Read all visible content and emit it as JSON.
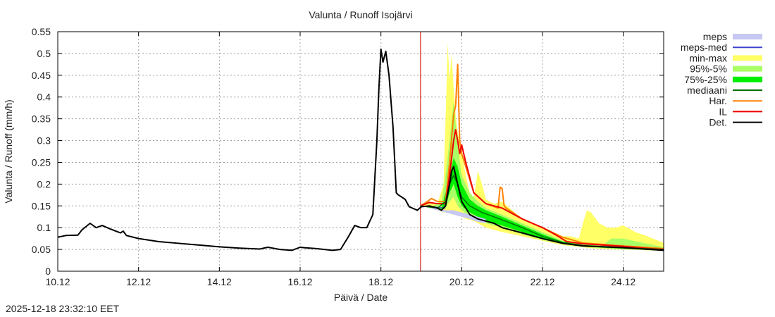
{
  "title": "Valunta / Runoff  Isojärvi",
  "timestamp": "2025-12-18 23:32:10 EET",
  "chart_data": {
    "type": "line",
    "title": "Valunta / Runoff  Isojärvi",
    "xlabel": "Päivä / Date",
    "ylabel": "Valunta / Runoff (mm/h)",
    "ylim": [
      0,
      0.55
    ],
    "xlim_days": [
      10,
      25
    ],
    "grid": true,
    "legend_position": "right-outside",
    "x_ticks": [
      {
        "day": 10,
        "label": "10.12"
      },
      {
        "day": 12,
        "label": "12.12"
      },
      {
        "day": 14,
        "label": "14.12"
      },
      {
        "day": 16,
        "label": "16.12"
      },
      {
        "day": 18,
        "label": "18.12"
      },
      {
        "day": 20,
        "label": "20.12"
      },
      {
        "day": 22,
        "label": "22.12"
      },
      {
        "day": 24,
        "label": "24.12"
      }
    ],
    "y_ticks": [
      {
        "value": 0,
        "label": "0"
      },
      {
        "value": 0.05,
        "label": "0.05"
      },
      {
        "value": 0.1,
        "label": "0.1"
      },
      {
        "value": 0.15,
        "label": "0.15"
      },
      {
        "value": 0.2,
        "label": "0.2"
      },
      {
        "value": 0.25,
        "label": "0.25"
      },
      {
        "value": 0.3,
        "label": "0.3"
      },
      {
        "value": 0.35,
        "label": "0.35"
      },
      {
        "value": 0.4,
        "label": "0.4"
      },
      {
        "value": 0.45,
        "label": "0.45"
      },
      {
        "value": 0.5,
        "label": "0.5"
      },
      {
        "value": 0.55,
        "label": "0.55"
      }
    ],
    "forecast_start_day": 18.98,
    "forecast_line_color": "#cc0000",
    "legend": [
      {
        "label": "meps",
        "color": "#c8c8f5",
        "kind": "band"
      },
      {
        "label": "meps-med",
        "color": "#4040d0",
        "kind": "line"
      },
      {
        "label": "min-max",
        "color": "#ffff66",
        "kind": "band"
      },
      {
        "label": "95%-5%",
        "color": "#aaff66",
        "kind": "band"
      },
      {
        "label": "75%-25%",
        "color": "#00ee00",
        "kind": "band"
      },
      {
        "label": "mediaani",
        "color": "#007000",
        "kind": "line"
      },
      {
        "label": "Har.",
        "color": "#ff8000",
        "kind": "line"
      },
      {
        "label": "IL",
        "color": "#ee0000",
        "kind": "line"
      },
      {
        "label": "Det.",
        "color": "#000000",
        "kind": "line"
      }
    ],
    "bands": [
      {
        "name": "min-max",
        "color": "#ffff66",
        "x": [
          18.98,
          19.2,
          19.4,
          19.55,
          19.62,
          19.65,
          19.7,
          19.75,
          19.8,
          19.85,
          19.9,
          20.0,
          20.1,
          20.2,
          20.3,
          20.4,
          20.5,
          20.6,
          20.8,
          21.0,
          21.5,
          22.0,
          22.5,
          22.7,
          22.9,
          23.0,
          23.1,
          23.2,
          23.4,
          23.6,
          23.8,
          24.0,
          24.3,
          24.6,
          25.0
        ],
        "high": [
          0.15,
          0.16,
          0.155,
          0.2,
          0.41,
          0.525,
          0.44,
          0.5,
          0.42,
          0.36,
          0.32,
          0.27,
          0.22,
          0.18,
          0.17,
          0.23,
          0.2,
          0.165,
          0.155,
          0.16,
          0.12,
          0.1,
          0.08,
          0.08,
          0.075,
          0.11,
          0.14,
          0.135,
          0.11,
          0.1,
          0.1,
          0.105,
          0.09,
          0.08,
          0.065
        ],
        "low": [
          0.15,
          0.145,
          0.14,
          0.135,
          0.135,
          0.14,
          0.135,
          0.13,
          0.13,
          0.13,
          0.128,
          0.125,
          0.12,
          0.118,
          0.115,
          0.11,
          0.105,
          0.1,
          0.095,
          0.09,
          0.08,
          0.07,
          0.06,
          0.058,
          0.056,
          0.055,
          0.054,
          0.053,
          0.052,
          0.051,
          0.05,
          0.05,
          0.049,
          0.048,
          0.047
        ]
      },
      {
        "name": "95%-5%",
        "color": "#aaff66",
        "x": [
          18.98,
          19.3,
          19.5,
          19.6,
          19.7,
          19.8,
          19.9,
          20.0,
          20.2,
          20.4,
          20.6,
          21.0,
          21.5,
          22.0,
          22.5,
          23.0,
          23.5,
          23.7,
          24.0,
          24.5,
          25.0
        ],
        "high": [
          0.15,
          0.15,
          0.16,
          0.22,
          0.3,
          0.39,
          0.29,
          0.22,
          0.18,
          0.16,
          0.145,
          0.13,
          0.11,
          0.09,
          0.07,
          0.062,
          0.06,
          0.075,
          0.075,
          0.065,
          0.055
        ],
        "low": [
          0.15,
          0.145,
          0.14,
          0.145,
          0.16,
          0.17,
          0.15,
          0.14,
          0.125,
          0.118,
          0.11,
          0.1,
          0.085,
          0.072,
          0.062,
          0.056,
          0.053,
          0.052,
          0.05,
          0.049,
          0.047
        ]
      },
      {
        "name": "75%-25%",
        "color": "#00ee00",
        "x": [
          18.98,
          19.5,
          19.6,
          19.7,
          19.8,
          19.9,
          20.0,
          20.2,
          20.4,
          20.6,
          21.0,
          21.5,
          22.0,
          22.5,
          23.0,
          23.5,
          24.0,
          24.5,
          25.0
        ],
        "high": [
          0.15,
          0.145,
          0.18,
          0.22,
          0.26,
          0.24,
          0.2,
          0.165,
          0.15,
          0.14,
          0.125,
          0.105,
          0.085,
          0.068,
          0.06,
          0.056,
          0.054,
          0.052,
          0.05
        ],
        "low": [
          0.15,
          0.14,
          0.15,
          0.18,
          0.2,
          0.17,
          0.15,
          0.135,
          0.125,
          0.115,
          0.105,
          0.09,
          0.075,
          0.064,
          0.058,
          0.054,
          0.052,
          0.05,
          0.048
        ]
      },
      {
        "name": "meps",
        "color": "#c8c8f5",
        "x": [
          18.98,
          19.4,
          19.6,
          19.8,
          20.0,
          20.2,
          20.4,
          20.6
        ],
        "high": [
          0.15,
          0.145,
          0.14,
          0.14,
          0.135,
          0.13,
          0.125,
          0.12
        ],
        "low": [
          0.15,
          0.14,
          0.135,
          0.13,
          0.125,
          0.12,
          0.113,
          0.11
        ]
      }
    ],
    "series": [
      {
        "name": "Det.",
        "color": "#000000",
        "width": 2,
        "x": [
          10.0,
          10.2,
          10.5,
          10.6,
          10.8,
          10.95,
          11.1,
          11.3,
          11.55,
          11.62,
          11.7,
          12.0,
          12.5,
          13.0,
          13.5,
          14.0,
          14.5,
          15.0,
          15.2,
          15.5,
          15.8,
          16.0,
          16.1,
          16.4,
          16.8,
          17.0,
          17.2,
          17.35,
          17.5,
          17.65,
          17.8,
          17.9,
          17.95,
          18.0,
          18.05,
          18.12,
          18.2,
          18.3,
          18.38,
          18.42,
          18.6,
          18.7,
          18.9,
          19.0,
          19.2,
          19.4,
          19.5,
          19.6,
          19.7,
          19.75,
          19.8,
          19.9,
          20.0,
          20.2,
          20.4,
          20.6,
          20.8,
          21.0,
          21.5,
          22.0,
          22.5,
          23.0,
          23.5,
          24.0,
          24.5,
          25.0
        ],
        "y": [
          0.078,
          0.082,
          0.083,
          0.095,
          0.11,
          0.1,
          0.105,
          0.097,
          0.088,
          0.092,
          0.082,
          0.075,
          0.068,
          0.064,
          0.06,
          0.056,
          0.053,
          0.051,
          0.055,
          0.05,
          0.048,
          0.055,
          0.054,
          0.052,
          0.048,
          0.05,
          0.08,
          0.105,
          0.1,
          0.1,
          0.13,
          0.3,
          0.42,
          0.51,
          0.48,
          0.505,
          0.45,
          0.33,
          0.18,
          0.176,
          0.165,
          0.148,
          0.14,
          0.148,
          0.15,
          0.145,
          0.14,
          0.15,
          0.2,
          0.23,
          0.24,
          0.2,
          0.16,
          0.13,
          0.12,
          0.115,
          0.11,
          0.1,
          0.088,
          0.075,
          0.064,
          0.058,
          0.056,
          0.054,
          0.051,
          0.048
        ]
      },
      {
        "name": "mediaani",
        "color": "#007000",
        "width": 1.5,
        "x": [
          18.98,
          19.4,
          19.6,
          19.7,
          19.8,
          19.9,
          20.0,
          20.2,
          20.5,
          21.0,
          21.5,
          22.0,
          22.5,
          23.0,
          24.0,
          25.0
        ],
        "y": [
          0.15,
          0.145,
          0.16,
          0.2,
          0.22,
          0.2,
          0.17,
          0.15,
          0.135,
          0.118,
          0.1,
          0.08,
          0.066,
          0.059,
          0.054,
          0.05
        ]
      },
      {
        "name": "Har.",
        "color": "#ff8000",
        "width": 2,
        "x": [
          18.98,
          19.15,
          19.25,
          19.4,
          19.6,
          19.7,
          19.8,
          19.85,
          19.9,
          19.95,
          20.0,
          20.1,
          20.3,
          20.6,
          20.9,
          20.95,
          21.0,
          21.05,
          21.1,
          21.5,
          22.0,
          22.5,
          23.0,
          24.0,
          25.0
        ],
        "y": [
          0.15,
          0.16,
          0.167,
          0.16,
          0.16,
          0.25,
          0.36,
          0.38,
          0.475,
          0.3,
          0.27,
          0.24,
          0.18,
          0.155,
          0.145,
          0.193,
          0.19,
          0.15,
          0.145,
          0.12,
          0.1,
          0.078,
          0.065,
          0.058,
          0.052
        ]
      },
      {
        "name": "IL",
        "color": "#ee0000",
        "width": 2,
        "x": [
          18.98,
          19.2,
          19.4,
          19.6,
          19.7,
          19.8,
          19.85,
          19.9,
          19.95,
          20.0,
          20.1,
          20.3,
          20.6,
          21.0,
          21.5,
          22.0,
          22.3,
          22.6,
          23.0,
          23.5,
          24.0,
          24.5,
          25.0
        ],
        "y": [
          0.15,
          0.158,
          0.155,
          0.155,
          0.22,
          0.3,
          0.325,
          0.3,
          0.27,
          0.29,
          0.25,
          0.18,
          0.155,
          0.145,
          0.12,
          0.1,
          0.085,
          0.068,
          0.063,
          0.06,
          0.057,
          0.053,
          0.05
        ]
      },
      {
        "name": "meps-med",
        "color": "#4040d0",
        "width": 1,
        "x": [
          18.98,
          19.3,
          19.6
        ],
        "y": [
          0.15,
          0.148,
          0.145
        ]
      }
    ]
  }
}
